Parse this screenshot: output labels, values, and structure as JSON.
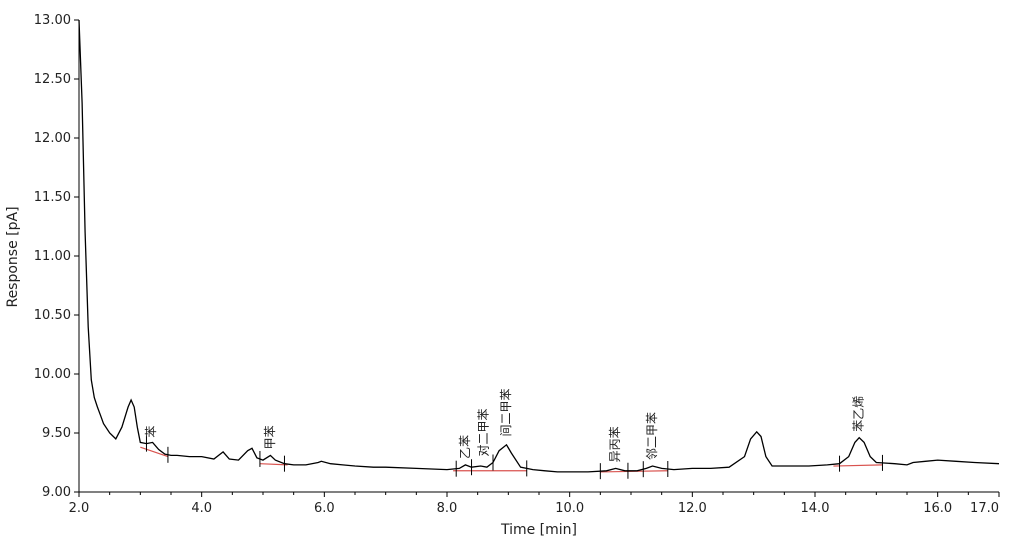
{
  "chart_data": {
    "type": "line",
    "title": "",
    "xlabel": "Time [min]",
    "ylabel": "Response [pA]",
    "xlim": [
      2.0,
      17.0
    ],
    "ylim": [
      9.0,
      13.0
    ],
    "x_ticks": [
      2.0,
      4.0,
      6.0,
      8.0,
      10.0,
      12.0,
      14.0,
      16.0,
      17.0
    ],
    "x_tick_labels": [
      "2.0",
      "4.0",
      "6.0",
      "8.0",
      "10.0",
      "12.0",
      "14.0",
      "16.0",
      "17.0"
    ],
    "y_ticks": [
      9.0,
      9.5,
      10.0,
      10.5,
      11.0,
      11.5,
      12.0,
      12.5,
      13.0
    ],
    "y_tick_labels": [
      "9.00",
      "9.50",
      "10.00",
      "10.50",
      "11.00",
      "11.50",
      "12.00",
      "12.50",
      "13.00"
    ],
    "grid": false,
    "line_color": "#000000",
    "baseline_color": "#d9534f",
    "series": [
      {
        "x": [
          2.0,
          2.05,
          2.1,
          2.15,
          2.2,
          2.25,
          2.3,
          2.35,
          2.4,
          2.5,
          2.6,
          2.7,
          2.8,
          2.85,
          2.9,
          2.95,
          3.0,
          3.1,
          3.2,
          3.3,
          3.4,
          3.5,
          3.6,
          3.8,
          4.0,
          4.2,
          4.35,
          4.45,
          4.6,
          4.75,
          4.82,
          4.9,
          5.0,
          5.12,
          5.2,
          5.35,
          5.5,
          5.7,
          5.9,
          5.95,
          6.1,
          6.3,
          6.5,
          6.8,
          7.0,
          7.5,
          8.0,
          8.2,
          8.3,
          8.4,
          8.55,
          8.65,
          8.75,
          8.85,
          8.97,
          9.05,
          9.2,
          9.4,
          9.6,
          9.8,
          10.0,
          10.3,
          10.6,
          10.75,
          10.9,
          11.1,
          11.25,
          11.35,
          11.5,
          11.7,
          12.0,
          12.3,
          12.6,
          12.85,
          12.95,
          13.05,
          13.12,
          13.2,
          13.3,
          13.6,
          13.9,
          14.2,
          14.4,
          14.55,
          14.65,
          14.72,
          14.8,
          14.9,
          15.0,
          15.3,
          15.5,
          15.6,
          15.8,
          16.0,
          16.3,
          16.6,
          17.0
        ],
        "y": [
          13.0,
          12.3,
          11.2,
          10.4,
          9.95,
          9.8,
          9.72,
          9.65,
          9.58,
          9.5,
          9.45,
          9.55,
          9.72,
          9.78,
          9.72,
          9.55,
          9.42,
          9.41,
          9.42,
          9.36,
          9.32,
          9.31,
          9.31,
          9.3,
          9.3,
          9.28,
          9.34,
          9.28,
          9.27,
          9.35,
          9.37,
          9.29,
          9.27,
          9.31,
          9.27,
          9.24,
          9.23,
          9.23,
          9.25,
          9.26,
          9.24,
          9.23,
          9.22,
          9.21,
          9.21,
          9.2,
          9.19,
          9.2,
          9.23,
          9.21,
          9.22,
          9.21,
          9.25,
          9.35,
          9.4,
          9.33,
          9.21,
          9.19,
          9.18,
          9.17,
          9.17,
          9.17,
          9.18,
          9.2,
          9.18,
          9.18,
          9.2,
          9.22,
          9.2,
          9.19,
          9.2,
          9.2,
          9.21,
          9.3,
          9.45,
          9.51,
          9.47,
          9.3,
          9.22,
          9.22,
          9.22,
          9.23,
          9.24,
          9.3,
          9.42,
          9.46,
          9.42,
          9.3,
          9.25,
          9.24,
          9.23,
          9.25,
          9.26,
          9.27,
          9.26,
          9.25,
          9.24
        ]
      }
    ],
    "baseline_segments": [
      {
        "x": [
          3.0,
          3.45
        ],
        "y": [
          9.38,
          9.3
        ]
      },
      {
        "x": [
          4.95,
          5.4
        ],
        "y": [
          9.24,
          9.23
        ]
      },
      {
        "x": [
          8.1,
          9.3
        ],
        "y": [
          9.18,
          9.18
        ]
      },
      {
        "x": [
          10.5,
          11.6
        ],
        "y": [
          9.17,
          9.18
        ]
      },
      {
        "x": [
          14.3,
          15.1
        ],
        "y": [
          9.22,
          9.23
        ]
      }
    ],
    "integration_markers": [
      3.1,
      3.45,
      4.95,
      5.35,
      8.15,
      8.4,
      8.75,
      9.3,
      10.5,
      10.95,
      11.2,
      11.6,
      14.4,
      15.1
    ],
    "peak_annotations": [
      {
        "x": 3.18,
        "y": 9.41,
        "label": "苯"
      },
      {
        "x": 5.12,
        "y": 9.31,
        "label": "甲苯"
      },
      {
        "x": 8.3,
        "y": 9.23,
        "label": "乙苯"
      },
      {
        "x": 8.6,
        "y": 9.25,
        "label": "对二甲苯"
      },
      {
        "x": 8.97,
        "y": 9.42,
        "label": "间二甲苯"
      },
      {
        "x": 10.75,
        "y": 9.2,
        "label": "异丙苯"
      },
      {
        "x": 11.35,
        "y": 9.22,
        "label": "邻二甲苯"
      },
      {
        "x": 14.72,
        "y": 9.46,
        "label": "苯乙烯"
      }
    ]
  }
}
